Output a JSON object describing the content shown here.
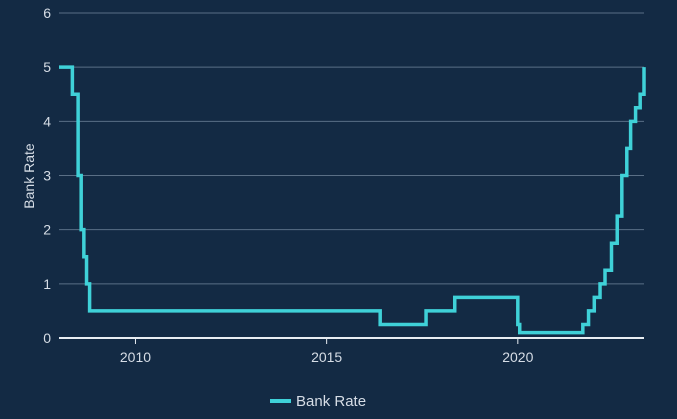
{
  "colors": {
    "background": "#132a44",
    "series": "#3fd1d8",
    "grid": "#5a6f86",
    "text": "#d6dde6"
  },
  "chart_data": {
    "type": "line",
    "title": "",
    "xlabel": "",
    "ylabel": "Bank Rate",
    "ylim": [
      0,
      6
    ],
    "xlim": [
      2008.0,
      2023.3
    ],
    "yticks": [
      0,
      1,
      2,
      3,
      4,
      5,
      6
    ],
    "xticks": [
      2010,
      2015,
      2020
    ],
    "grid": true,
    "legend_position": "bottom-center",
    "series": [
      {
        "name": "Bank Rate",
        "step": true,
        "points": [
          [
            2008.0,
            5.0
          ],
          [
            2008.27,
            5.0
          ],
          [
            2008.35,
            4.5
          ],
          [
            2008.42,
            4.5
          ],
          [
            2008.5,
            3.0
          ],
          [
            2008.58,
            2.0
          ],
          [
            2008.65,
            1.5
          ],
          [
            2008.72,
            1.0
          ],
          [
            2008.8,
            0.5
          ],
          [
            2016.4,
            0.25
          ],
          [
            2017.6,
            0.5
          ],
          [
            2018.35,
            0.75
          ],
          [
            2020.0,
            0.25
          ],
          [
            2020.05,
            0.1
          ],
          [
            2021.7,
            0.25
          ],
          [
            2021.85,
            0.5
          ],
          [
            2022.0,
            0.75
          ],
          [
            2022.15,
            1.0
          ],
          [
            2022.28,
            1.25
          ],
          [
            2022.45,
            1.75
          ],
          [
            2022.6,
            2.25
          ],
          [
            2022.72,
            3.0
          ],
          [
            2022.85,
            3.5
          ],
          [
            2022.95,
            4.0
          ],
          [
            2023.08,
            4.25
          ],
          [
            2023.2,
            4.5
          ],
          [
            2023.3,
            5.0
          ]
        ]
      }
    ]
  }
}
